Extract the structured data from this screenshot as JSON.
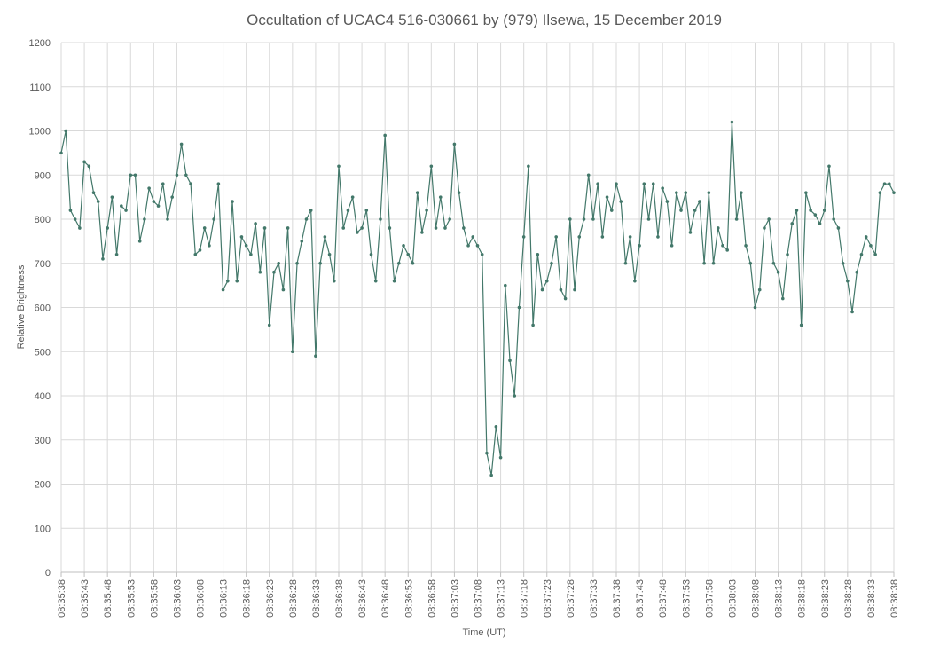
{
  "chart_data": {
    "type": "line",
    "title": "Occultation of UCAC4 516-030661 by (979) Ilsewa, 15 December 2019",
    "x_label": "Time (UT)",
    "y_label": "Relative Brightness",
    "categories": [
      "08:35:38",
      null,
      null,
      null,
      null,
      "08:35:43",
      null,
      null,
      null,
      null,
      "08:35:48",
      null,
      null,
      null,
      null,
      "08:35:53",
      null,
      null,
      null,
      null,
      "08:35:58",
      null,
      null,
      null,
      null,
      "08:36:03",
      null,
      null,
      null,
      null,
      "08:36:08",
      null,
      null,
      null,
      null,
      "08:36:13",
      null,
      null,
      null,
      null,
      "08:36:18",
      null,
      null,
      null,
      null,
      "08:36:23",
      null,
      null,
      null,
      null,
      "08:36:28",
      null,
      null,
      null,
      null,
      "08:36:33",
      null,
      null,
      null,
      null,
      "08:36:38",
      null,
      null,
      null,
      null,
      "08:36:43",
      null,
      null,
      null,
      null,
      "08:36:48",
      null,
      null,
      null,
      null,
      "08:36:53",
      null,
      null,
      null,
      null,
      "08:36:58",
      null,
      null,
      null,
      null,
      "08:37:03",
      null,
      null,
      null,
      null,
      "08:37:08",
      null,
      null,
      null,
      null,
      "08:37:13",
      null,
      null,
      null,
      null,
      "08:37:18",
      null,
      null,
      null,
      null,
      "08:37:23",
      null,
      null,
      null,
      null,
      "08:37:28",
      null,
      null,
      null,
      null,
      "08:37:33",
      null,
      null,
      null,
      null,
      "08:37:38",
      null,
      null,
      null,
      null,
      "08:37:43",
      null,
      null,
      null,
      null,
      "08:37:48",
      null,
      null,
      null,
      null,
      "08:37:53",
      null,
      null,
      null,
      null,
      "08:37:58",
      null,
      null,
      null,
      null,
      "08:38:03",
      null,
      null,
      null,
      null,
      "08:38:08",
      null,
      null,
      null,
      null,
      "08:38:13",
      null,
      null,
      null,
      null,
      "08:38:18",
      null,
      null,
      null,
      null,
      "08:38:23",
      null,
      null,
      null,
      null,
      "08:38:28",
      null,
      null,
      null,
      null,
      "08:38:33",
      null,
      null,
      null,
      null,
      "08:38:38"
    ],
    "series": [
      {
        "name": "Relative Brightness",
        "color": "#43786a",
        "values": [
          950,
          1000,
          820,
          800,
          780,
          930,
          920,
          860,
          840,
          710,
          780,
          850,
          720,
          830,
          820,
          900,
          900,
          750,
          800,
          870,
          840,
          830,
          880,
          800,
          850,
          900,
          970,
          900,
          880,
          720,
          730,
          780,
          740,
          800,
          880,
          640,
          660,
          840,
          660,
          760,
          740,
          720,
          790,
          680,
          780,
          560,
          680,
          700,
          640,
          780,
          500,
          700,
          750,
          800,
          820,
          490,
          700,
          760,
          720,
          660,
          920,
          780,
          820,
          850,
          770,
          780,
          820,
          720,
          660,
          800,
          990,
          780,
          660,
          700,
          740,
          720,
          700,
          860,
          770,
          820,
          920,
          780,
          850,
          780,
          800,
          970,
          860,
          780,
          740,
          760,
          740,
          720,
          270,
          220,
          330,
          260,
          650,
          480,
          400,
          600,
          760,
          920,
          560,
          720,
          640,
          660,
          700,
          760,
          640,
          620,
          800,
          640,
          760,
          800,
          900,
          800,
          880,
          760,
          850,
          820,
          880,
          840,
          700,
          760,
          660,
          740,
          880,
          800,
          880,
          760,
          870,
          840,
          740,
          860,
          820,
          860,
          770,
          820,
          840,
          700,
          860,
          700,
          780,
          740,
          730,
          1020,
          800,
          860,
          740,
          700,
          600,
          640,
          780,
          800,
          700,
          680,
          620,
          720,
          790,
          820,
          560,
          860,
          820,
          810,
          790,
          820,
          920,
          800,
          780,
          700,
          660,
          590,
          680,
          720,
          760,
          740,
          720,
          860,
          880,
          880,
          860
        ]
      }
    ],
    "ylim": [
      0,
      1200
    ],
    "yticks": [
      0,
      100,
      200,
      300,
      400,
      500,
      600,
      700,
      800,
      900,
      1000,
      1100,
      1200
    ],
    "grid": true
  }
}
